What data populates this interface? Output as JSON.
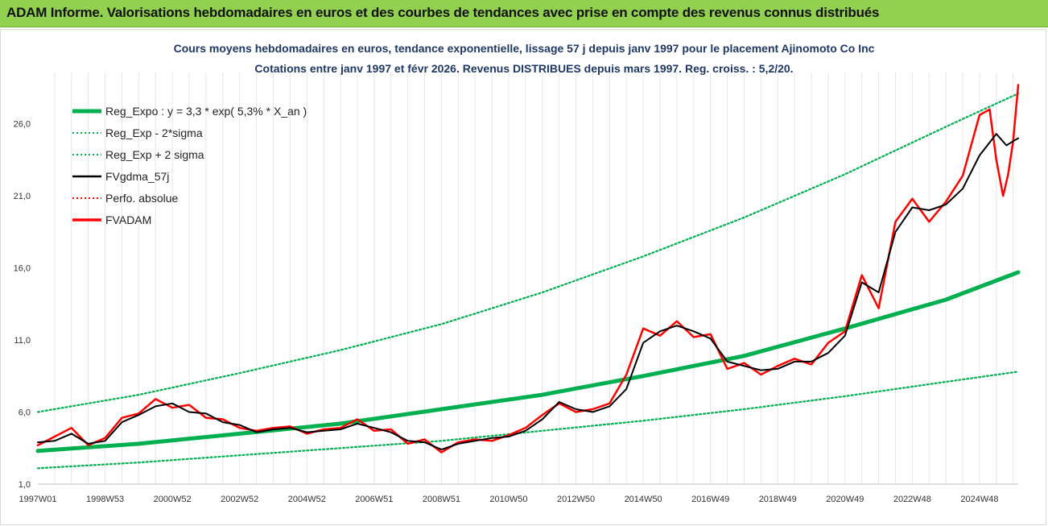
{
  "header": {
    "title": "ADAM Informe. Valorisations hebdomadaires en euros et des courbes de tendances avec prise en compte des revenus connus distribués"
  },
  "chart": {
    "title_line1": "Cours moyens hebdomadaires en euros, tendance exponentielle, lissage 57 j depuis janv 1997 pour le placement Ajinomoto Co Inc",
    "title_line2": "Cotations entre janv 1997 et févr 2026. Revenus DISTRIBUES depuis mars 1997. Reg. croiss. : 5,2/20."
  },
  "colors": {
    "header_bg": "#92d050",
    "reg_expo": "#00b050",
    "sigma": "#00b050",
    "fvgdma": "#000000",
    "perfo": "#ff0000",
    "fvadam": "#ff0000",
    "title": "#1f3864"
  },
  "chart_data": {
    "type": "line",
    "title": "Cours moyens hebdomadaires en euros, tendance exponentielle, lissage 57 j depuis janv 1997 pour le placement Ajinomoto Co Inc",
    "xlabel": "",
    "ylabel": "",
    "ylim": [
      1.0,
      29.0
    ],
    "yticks": [
      1.0,
      6.0,
      11.0,
      16.0,
      21.0,
      26.0
    ],
    "ytick_labels": [
      "1,0",
      "6,0",
      "11,0",
      "16,0",
      "21,0",
      "26,0"
    ],
    "xlim": [
      1997.0,
      2026.15
    ],
    "xticks": [
      1997.0,
      1999.0,
      2001.0,
      2003.0,
      2005.0,
      2007.0,
      2009.0,
      2011.0,
      2013.0,
      2015.0,
      2017.0,
      2019.0,
      2021.0,
      2023.0,
      2025.0
    ],
    "xtick_labels": [
      "1997W01",
      "1998W53",
      "2000W52",
      "2002W52",
      "2004W52",
      "2006W51",
      "2008W51",
      "2010W50",
      "2012W50",
      "2014W50",
      "2016W49",
      "2018W49",
      "2020W49",
      "2022W48",
      "2024W48"
    ],
    "grid": "vertical",
    "legend_position": "top-left",
    "legend": [
      {
        "name": "Reg_Expo : y = 3,3 * exp( 5,3% *  X_an )",
        "style": "thick-solid",
        "color": "#00b050"
      },
      {
        "name": "Reg_Exp - 2*sigma",
        "style": "dotted",
        "color": "#00b050"
      },
      {
        "name": "Reg_Exp + 2 sigma",
        "style": "dotted",
        "color": "#00b050"
      },
      {
        "name": "FVgdma_57j",
        "style": "solid",
        "color": "#000000"
      },
      {
        "name": "Perfo. absolue",
        "style": "dotted",
        "color": "#ff0000"
      },
      {
        "name": "FVADAM",
        "style": "solid-thick",
        "color": "#ff0000"
      }
    ],
    "series": [
      {
        "name": "Reg_Expo : y = 3,3 * exp( 5,3% *  X_an )",
        "x": [
          1997.0,
          2000.0,
          2003.0,
          2006.0,
          2009.0,
          2012.0,
          2015.0,
          2018.0,
          2021.0,
          2024.0,
          2026.15
        ],
        "y": [
          3.3,
          3.8,
          4.5,
          5.2,
          6.2,
          7.2,
          8.5,
          9.9,
          11.8,
          13.8,
          15.7
        ]
      },
      {
        "name": "Reg_Exp - 2*sigma",
        "x": [
          1997.0,
          2000.0,
          2003.0,
          2006.0,
          2009.0,
          2012.0,
          2015.0,
          2018.0,
          2021.0,
          2024.0,
          2026.15
        ],
        "y": [
          2.1,
          2.5,
          3.0,
          3.5,
          4.0,
          4.7,
          5.4,
          6.2,
          7.1,
          8.1,
          8.8
        ]
      },
      {
        "name": "Reg_Exp + 2 sigma",
        "x": [
          1997.0,
          2000.0,
          2003.0,
          2006.0,
          2009.0,
          2012.0,
          2015.0,
          2018.0,
          2021.0,
          2024.0,
          2026.15
        ],
        "y": [
          6.0,
          7.2,
          8.7,
          10.3,
          12.1,
          14.3,
          16.8,
          19.5,
          22.5,
          25.8,
          28.1
        ]
      },
      {
        "name": "FVgdma_57j",
        "x": [
          1997.0,
          1997.5,
          1998.0,
          1998.5,
          1999.0,
          1999.5,
          2000.0,
          2000.5,
          2001.0,
          2001.5,
          2002.0,
          2002.5,
          2003.0,
          2003.5,
          2004.0,
          2004.5,
          2005.0,
          2005.5,
          2006.0,
          2006.5,
          2007.0,
          2007.5,
          2008.0,
          2008.5,
          2009.0,
          2009.5,
          2010.0,
          2010.5,
          2011.0,
          2011.5,
          2012.0,
          2012.5,
          2013.0,
          2013.5,
          2014.0,
          2014.5,
          2015.0,
          2015.5,
          2016.0,
          2016.5,
          2017.0,
          2017.5,
          2018.0,
          2018.5,
          2019.0,
          2019.5,
          2020.0,
          2020.5,
          2021.0,
          2021.5,
          2022.0,
          2022.5,
          2023.0,
          2023.5,
          2024.0,
          2024.5,
          2025.0,
          2025.5,
          2025.8,
          2026.0,
          2026.15
        ],
        "y": [
          3.9,
          4.0,
          4.5,
          3.8,
          4.0,
          5.3,
          5.8,
          6.4,
          6.6,
          6.0,
          5.9,
          5.3,
          5.1,
          4.6,
          4.8,
          4.9,
          4.6,
          4.7,
          4.8,
          5.2,
          4.9,
          4.6,
          4.0,
          3.9,
          3.4,
          3.8,
          4.0,
          4.2,
          4.3,
          4.7,
          5.5,
          6.7,
          6.2,
          6.0,
          6.4,
          7.6,
          10.8,
          11.6,
          12.0,
          11.6,
          11.1,
          9.5,
          9.2,
          8.9,
          9.0,
          9.5,
          9.5,
          10.1,
          11.3,
          15.0,
          14.3,
          18.5,
          20.2,
          20.0,
          20.4,
          21.5,
          23.8,
          25.3,
          24.5,
          24.8,
          25.0
        ]
      },
      {
        "name": "FVADAM",
        "x": [
          1997.0,
          1997.5,
          1998.0,
          1998.5,
          1999.0,
          1999.5,
          2000.0,
          2000.5,
          2001.0,
          2001.5,
          2002.0,
          2002.5,
          2003.0,
          2003.5,
          2004.0,
          2004.5,
          2005.0,
          2005.5,
          2006.0,
          2006.5,
          2007.0,
          2007.5,
          2008.0,
          2008.5,
          2009.0,
          2009.5,
          2010.0,
          2010.5,
          2011.0,
          2011.5,
          2012.0,
          2012.5,
          2013.0,
          2013.5,
          2014.0,
          2014.5,
          2015.0,
          2015.5,
          2016.0,
          2016.5,
          2017.0,
          2017.5,
          2018.0,
          2018.5,
          2019.0,
          2019.5,
          2020.0,
          2020.5,
          2021.0,
          2021.5,
          2022.0,
          2022.5,
          2023.0,
          2023.5,
          2024.0,
          2024.5,
          2025.0,
          2025.3,
          2025.5,
          2025.7,
          2025.85,
          2026.0,
          2026.15
        ],
        "y": [
          3.7,
          4.3,
          4.9,
          3.7,
          4.2,
          5.6,
          5.9,
          6.9,
          6.3,
          6.5,
          5.6,
          5.5,
          4.9,
          4.7,
          4.9,
          5.0,
          4.5,
          4.8,
          4.9,
          5.5,
          4.7,
          4.8,
          3.8,
          4.1,
          3.2,
          3.9,
          4.1,
          4.0,
          4.4,
          4.9,
          5.8,
          6.6,
          6.0,
          6.2,
          6.6,
          8.6,
          11.8,
          11.3,
          12.3,
          11.2,
          11.4,
          9.0,
          9.4,
          8.6,
          9.2,
          9.7,
          9.3,
          10.8,
          11.6,
          15.5,
          13.2,
          19.2,
          20.8,
          19.2,
          20.6,
          22.4,
          26.6,
          27.0,
          23.5,
          21.0,
          22.5,
          24.8,
          28.7
        ]
      }
    ]
  }
}
